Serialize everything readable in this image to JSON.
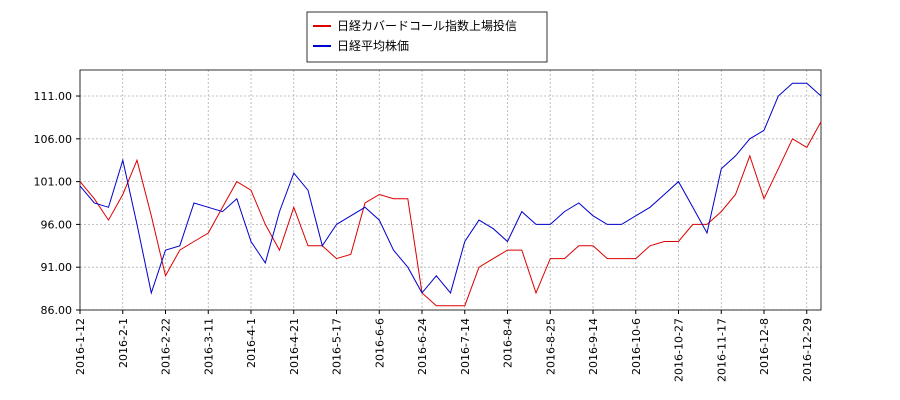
{
  "chart_data": {
    "type": "line",
    "categories": [
      "2016-1-12",
      null,
      null,
      "2016-2-1",
      null,
      null,
      "2016-2-22",
      null,
      null,
      "2016-3-11",
      null,
      null,
      "2016-4-1",
      null,
      null,
      "2016-4-21",
      null,
      null,
      "2016-5-17",
      null,
      null,
      "2016-6-6",
      null,
      null,
      "2016-6-24",
      null,
      null,
      "2016-7-14",
      null,
      null,
      "2016-8-4",
      null,
      null,
      "2016-8-25",
      null,
      null,
      "2016-9-14",
      null,
      null,
      "2016-10-6",
      null,
      null,
      "2016-10-27",
      null,
      null,
      "2016-11-17",
      null,
      null,
      "2016-12-8",
      null,
      null,
      "2016-12-29",
      null
    ],
    "series": [
      {
        "name": "日経カバードコール指数上場投信",
        "color": "#dd0000",
        "values": [
          101,
          99,
          96.5,
          99.5,
          103.5,
          97,
          90,
          93,
          94,
          95,
          98,
          101,
          100,
          96,
          93,
          98,
          93.5,
          93.5,
          92,
          92.5,
          98.5,
          99.5,
          99,
          99,
          88,
          86.5,
          86.5,
          86.5,
          91,
          92,
          93,
          93,
          88,
          92,
          92,
          93.5,
          93.5,
          92,
          92,
          92,
          93.5,
          94,
          94,
          96,
          96,
          97.5,
          99.5,
          104,
          99,
          102.5,
          106,
          105,
          108
        ]
      },
      {
        "name": "日経平均株価",
        "color": "#0000cc",
        "values": [
          100.5,
          98.5,
          98,
          103.5,
          96,
          88,
          93,
          93.5,
          98.5,
          98,
          97.5,
          99,
          94,
          91.5,
          97.5,
          102,
          100,
          93.5,
          96,
          97,
          98,
          96.5,
          93,
          91,
          88,
          90,
          88,
          94,
          96.5,
          95.5,
          94,
          97.5,
          96,
          96,
          97.5,
          98.5,
          97,
          96,
          96,
          97,
          98,
          99.5,
          101,
          98,
          95,
          102.5,
          104,
          106,
          107,
          111,
          112.5,
          112.5,
          111
        ]
      }
    ],
    "ylim": [
      86,
      114.04
    ],
    "yticks": [
      {
        "value": 86,
        "label": "86.00"
      },
      {
        "value": 91,
        "label": "91.00"
      },
      {
        "value": 96,
        "label": "96.00"
      },
      {
        "value": 101,
        "label": "101.00"
      },
      {
        "value": 106,
        "label": "106.00"
      },
      {
        "value": 111,
        "label": "111.00"
      }
    ],
    "grid": true
  }
}
